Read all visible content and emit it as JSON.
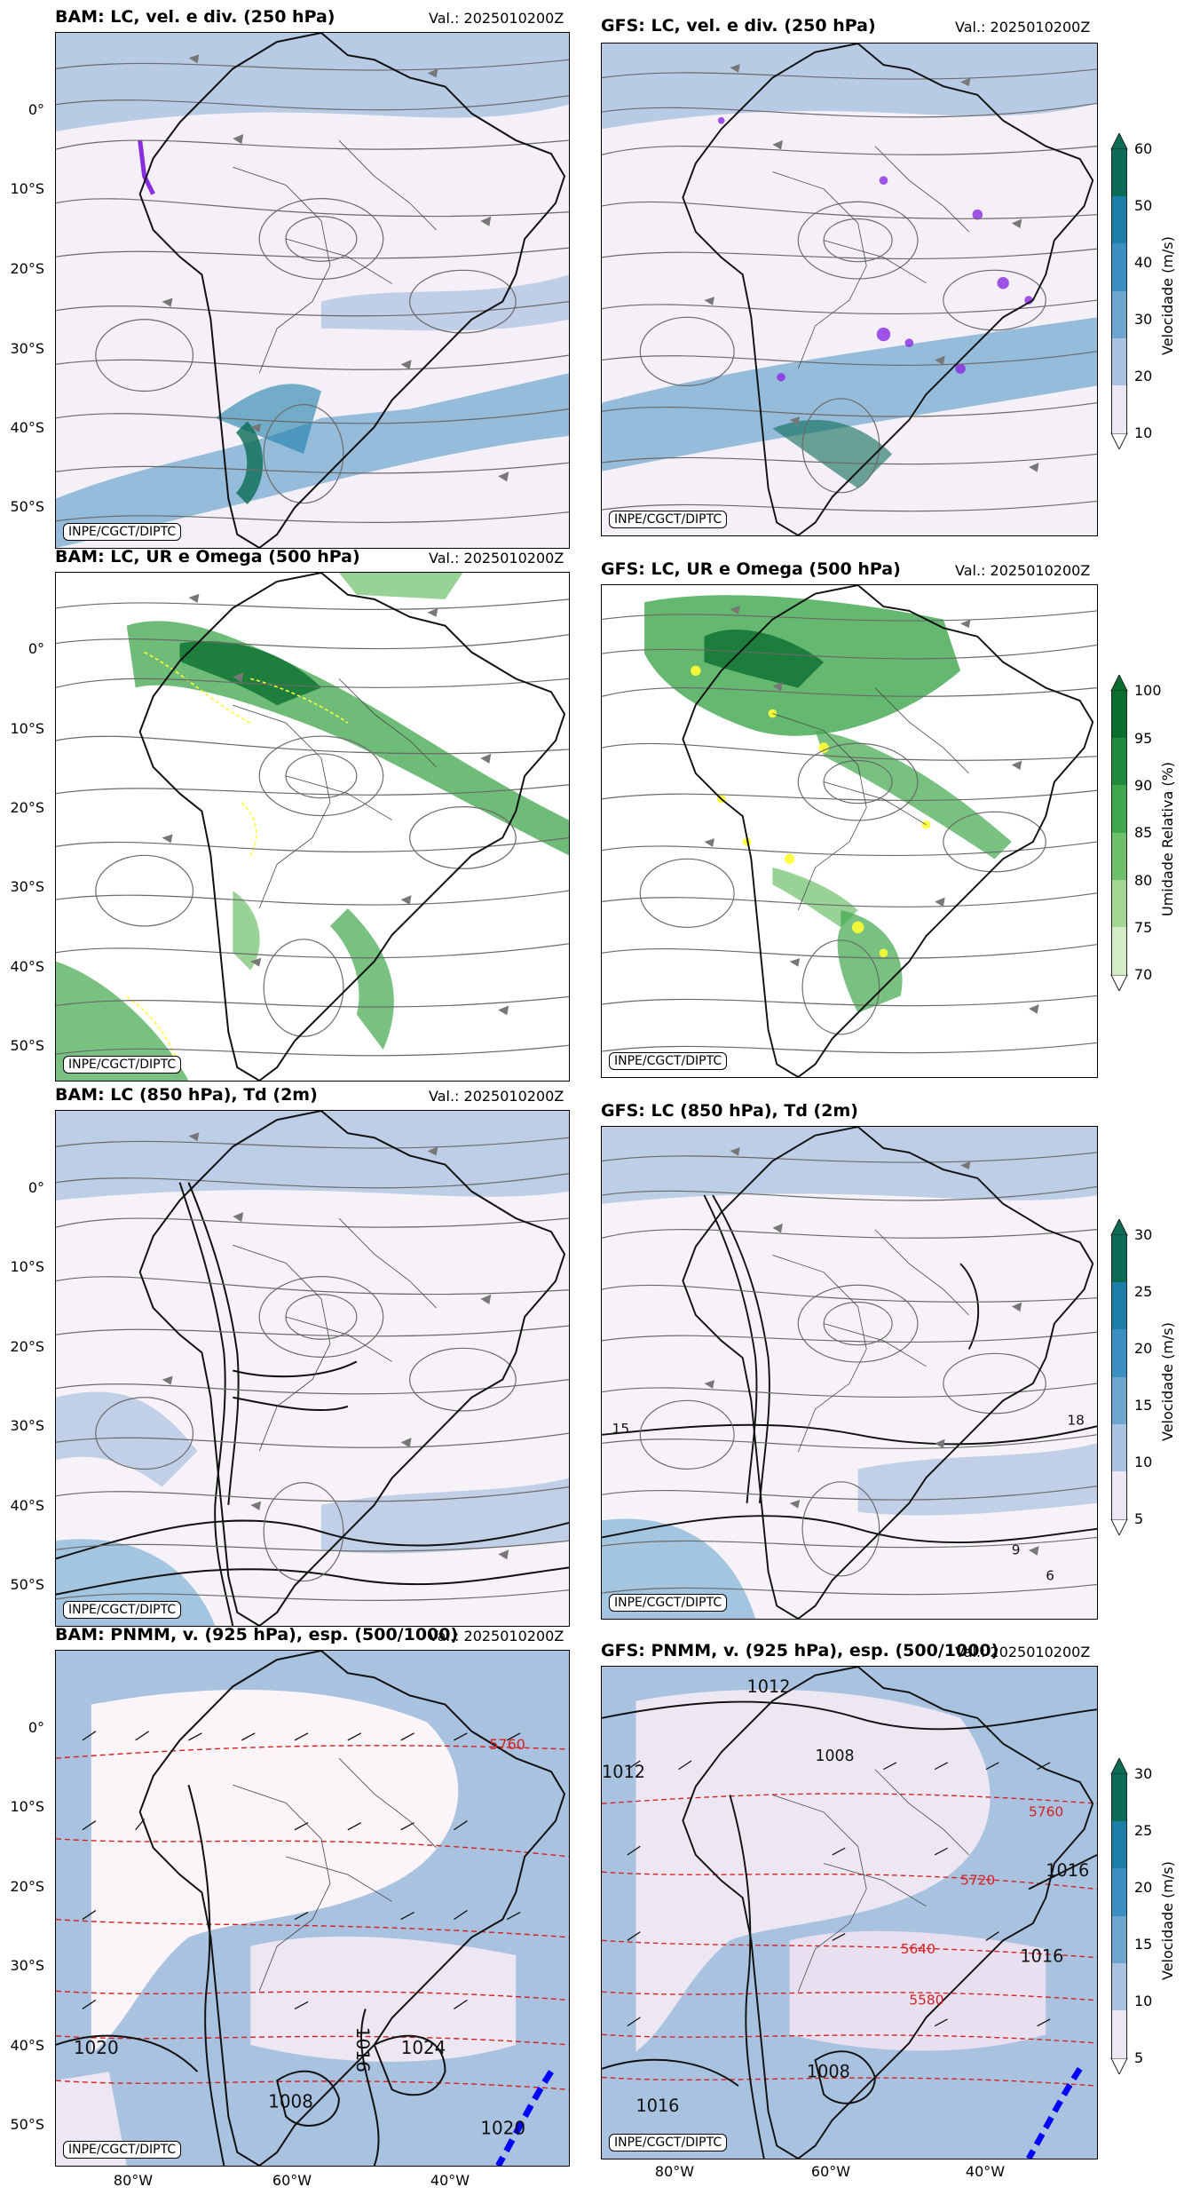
{
  "valid_label": "Val.: 2025010200Z",
  "credit": "INPE/CGCT/DIPTC",
  "panels": {
    "bam250": {
      "title": "BAM: LC, vel. e div. (250 hPa)"
    },
    "gfs250": {
      "title": "GFS: LC, vel. e div. (250 hPa)"
    },
    "bam500": {
      "title": "BAM: LC, UR e Omega (500 hPa)"
    },
    "gfs500": {
      "title": "GFS: LC, UR e Omega (500 hPa)"
    },
    "bam850": {
      "title": "BAM: LC (850 hPa), Td (2m)"
    },
    "gfs850": {
      "title": "GFS: LC (850 hPa), Td (2m)"
    },
    "bam925": {
      "title": "BAM: PNMM, v. (925 hPa), esp. (500/1000)"
    },
    "gfs925": {
      "title": "GFS: PNMM, v. (925 hPa), esp. (500/1000)"
    }
  },
  "lat_labels": [
    "0°",
    "10°S",
    "20°S",
    "30°S",
    "40°S",
    "50°S"
  ],
  "lon_labels": [
    "80°W",
    "60°W",
    "40°W"
  ],
  "colorbars": {
    "vel250": {
      "label": "Velocidade (m/s)",
      "ticks": [
        "60",
        "50",
        "40",
        "30",
        "20",
        "10"
      ],
      "colors": [
        "#0b6b55",
        "#1b7fa8",
        "#3a8fc0",
        "#6ca6cf",
        "#a9c2e0",
        "#ece7f2"
      ]
    },
    "ur500": {
      "label": "Umidade Relativa (%)",
      "ticks": [
        "100",
        "95",
        "90",
        "85",
        "80",
        "75",
        "70"
      ],
      "colors": [
        "#0a6e2f",
        "#1f8a3c",
        "#3fa64c",
        "#6ebf6a",
        "#a3d694",
        "#d4ecc6"
      ]
    },
    "vel850": {
      "label": "Velocidade (m/s)",
      "ticks": [
        "30",
        "25",
        "20",
        "15",
        "10",
        "5"
      ],
      "colors": [
        "#0b6b55",
        "#1b7fa8",
        "#3a8fc0",
        "#6ca6cf",
        "#a9c2e0",
        "#ece7f2"
      ]
    },
    "vel925": {
      "label": "Velocidade (m/s)",
      "ticks": [
        "30",
        "25",
        "20",
        "15",
        "10",
        "5"
      ],
      "colors": [
        "#0b6b55",
        "#1b7fa8",
        "#3a8fc0",
        "#6ca6cf",
        "#a9c2e0",
        "#ece7f2"
      ]
    }
  },
  "contour_labels": {
    "gfs850": [
      "15",
      "18",
      "9",
      "6"
    ],
    "bam925": [
      "1020",
      "1008",
      "1016",
      "1024",
      "1020",
      "5760"
    ],
    "gfs925": [
      "1012",
      "1012",
      "1008",
      "1016",
      "1016",
      "1008",
      "1016",
      "5760",
      "5720",
      "5640",
      "5580"
    ]
  },
  "colors": {
    "coast": "#111111",
    "streamline": "#666666",
    "bg_light": "#f7f2f8",
    "wind_low": "#a9c2e0",
    "wind_mid": "#6ca6cf",
    "rh_green": "#3fa64c",
    "omega_yellow": "#ffff33",
    "thickness_red": "#d42020",
    "divergence_purple": "#8a2be2"
  }
}
